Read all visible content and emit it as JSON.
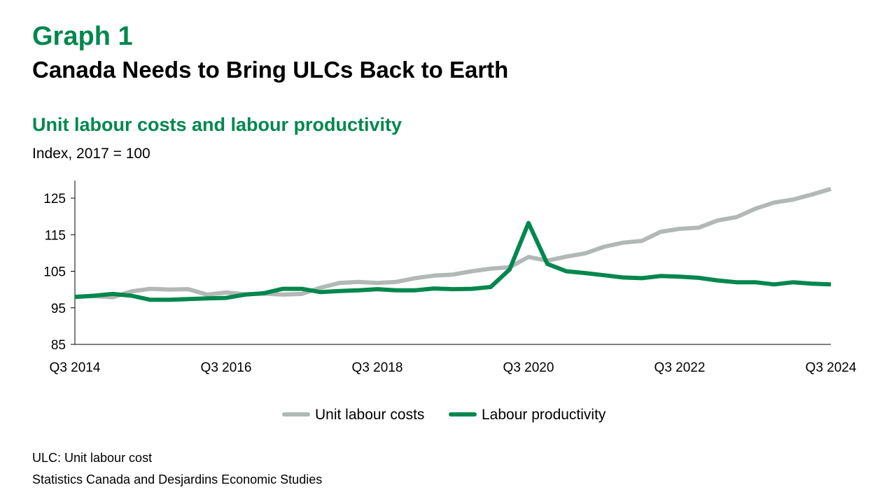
{
  "header": {
    "graph_number": "Graph 1",
    "title": "Canada Needs to Bring ULCs Back to Earth"
  },
  "chart_data": {
    "type": "line",
    "title": "Unit labour costs and labour productivity",
    "ylabel": "Index, 2017 = 100",
    "xlabel": "",
    "ylim": [
      85,
      130
    ],
    "yticks": [
      85,
      95,
      105,
      115,
      125
    ],
    "x": [
      "Q3 2014",
      "Q4 2014",
      "Q1 2015",
      "Q2 2015",
      "Q3 2015",
      "Q4 2015",
      "Q1 2016",
      "Q2 2016",
      "Q3 2016",
      "Q4 2016",
      "Q1 2017",
      "Q2 2017",
      "Q3 2017",
      "Q4 2017",
      "Q1 2018",
      "Q2 2018",
      "Q3 2018",
      "Q4 2018",
      "Q1 2019",
      "Q2 2019",
      "Q3 2019",
      "Q4 2019",
      "Q1 2020",
      "Q2 2020",
      "Q3 2020",
      "Q4 2020",
      "Q1 2021",
      "Q2 2021",
      "Q3 2021",
      "Q4 2021",
      "Q1 2022",
      "Q2 2022",
      "Q3 2022",
      "Q4 2022",
      "Q1 2023",
      "Q2 2023",
      "Q3 2023",
      "Q4 2023",
      "Q1 2024",
      "Q2 2024",
      "Q3 2024"
    ],
    "xtick_labels": [
      "Q3 2014",
      "Q3 2016",
      "Q3 2018",
      "Q3 2020",
      "Q3 2022",
      "Q3 2024"
    ],
    "series": [
      {
        "name": "Unit labour costs",
        "color": "#b2b8b5",
        "values": [
          98.0,
          98.2,
          97.9,
          99.5,
          100.2,
          100.0,
          100.1,
          98.6,
          99.2,
          98.7,
          98.9,
          98.6,
          98.8,
          100.5,
          101.8,
          102.1,
          101.8,
          102.1,
          103.1,
          103.8,
          104.1,
          105.0,
          105.7,
          106.1,
          108.9,
          107.9,
          109.0,
          109.9,
          111.7,
          112.8,
          113.3,
          115.8,
          116.6,
          116.9,
          118.9,
          119.8,
          122.1,
          123.8,
          124.6,
          126.0,
          127.5
        ]
      },
      {
        "name": "Labour productivity",
        "color": "#00874e",
        "values": [
          98.0,
          98.3,
          98.8,
          98.3,
          97.2,
          97.2,
          97.4,
          97.6,
          97.7,
          98.6,
          99.0,
          100.2,
          100.2,
          99.3,
          99.6,
          99.8,
          100.1,
          99.8,
          99.8,
          100.3,
          100.1,
          100.2,
          100.7,
          105.5,
          118.2,
          107.0,
          105.0,
          104.5,
          103.9,
          103.3,
          103.1,
          103.7,
          103.5,
          103.2,
          102.5,
          102.0,
          102.0,
          101.4,
          102.0,
          101.6,
          101.4
        ]
      }
    ],
    "legend_position": "bottom",
    "grid": false
  },
  "footer": {
    "note": "ULC: Unit labour cost",
    "source": "Statistics Canada and Desjardins Economic Studies"
  }
}
